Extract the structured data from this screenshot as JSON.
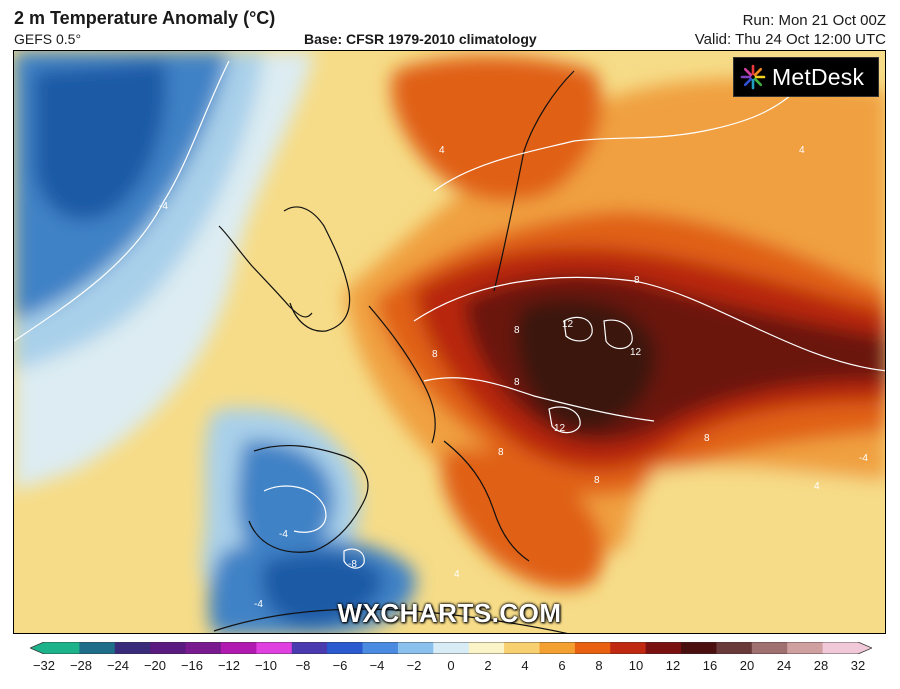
{
  "header": {
    "title": "2 m Temperature Anomaly (°C)",
    "model": "GEFS 0.5°",
    "base": "Base: CFSR 1979-2010 climatology",
    "run": "Run: Mon 21 Oct 00Z",
    "valid": "Valid: Thu 24 Oct 12:00 UTC"
  },
  "branding": {
    "logo_text": "MetDesk",
    "watermark": "WXCHARTS.COM"
  },
  "colorbar": {
    "ticks": [
      "−32",
      "−28",
      "−24",
      "−20",
      "−16",
      "−12",
      "−10",
      "−8",
      "−6",
      "−4",
      "−2",
      "0",
      "2",
      "4",
      "6",
      "8",
      "10",
      "12",
      "16",
      "20",
      "24",
      "28",
      "32"
    ],
    "colors": [
      "#1db38a",
      "#1e6e8a",
      "#3a2a7a",
      "#5a1a80",
      "#7a1a90",
      "#b01ab0",
      "#e040e0",
      "#4a3ab0",
      "#2a5ad0",
      "#4a8ae0",
      "#8ac0ee",
      "#d8ecf6",
      "#fbf4c8",
      "#f8d070",
      "#f4a030",
      "#e86010",
      "#c02810",
      "#7a1010",
      "#4a1010",
      "#6a3a3a",
      "#a07070",
      "#d0a0a0",
      "#f0c8d8"
    ]
  },
  "contours": {
    "labels": [
      "-4",
      "4",
      "4",
      "8",
      "8",
      "8",
      "8",
      "12",
      "12",
      "12",
      "8",
      "8",
      "8",
      "-4",
      "4",
      "-4",
      "-8",
      "-4",
      "4"
    ]
  },
  "map": {
    "colors": {
      "deep_blue": "#1f5aa6",
      "mid_blue": "#3f82c6",
      "light_blue": "#a9d0ea",
      "pale": "#dcecf2",
      "yellow": "#f6dc88",
      "orange": "#f0a040",
      "dark_orange": "#e06018",
      "red": "#b82810",
      "maroon": "#6a1410",
      "darkest": "#3a1410"
    }
  }
}
